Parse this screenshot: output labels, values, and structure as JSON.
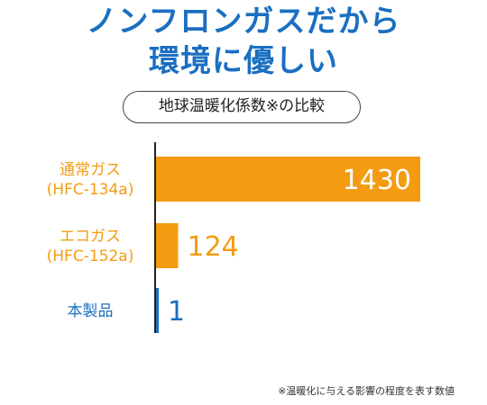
{
  "headline": {
    "line1": "ノンフロンガスだから",
    "line2": "環境に優しい"
  },
  "subtitle": "地球温暖化係数※の比較",
  "footnote": "※温暖化に与える影響の程度を表す数値",
  "colors": {
    "headline": "#1a6fc1",
    "bar_orange": "#f39c12",
    "bar_blue": "#1a6fc1",
    "axis": "#222222"
  },
  "chart_data": {
    "type": "bar",
    "orientation": "horizontal",
    "title": "地球温暖化係数※の比較",
    "categories": [
      {
        "lines": [
          "通常ガス",
          "(HFC-134a)"
        ],
        "value": 1430,
        "value_label": "1430",
        "color": "#f39c12",
        "label_inside": true
      },
      {
        "lines": [
          "エコガス",
          "(HFC-152a)"
        ],
        "value": 124,
        "value_label": "124",
        "color": "#f39c12",
        "label_inside": false
      },
      {
        "lines": [
          "本製品"
        ],
        "value": 1,
        "value_label": "1",
        "color": "#1a6fc1",
        "label_inside": false
      }
    ],
    "xlim": [
      0,
      1430
    ],
    "grid": false,
    "legend": "none"
  }
}
